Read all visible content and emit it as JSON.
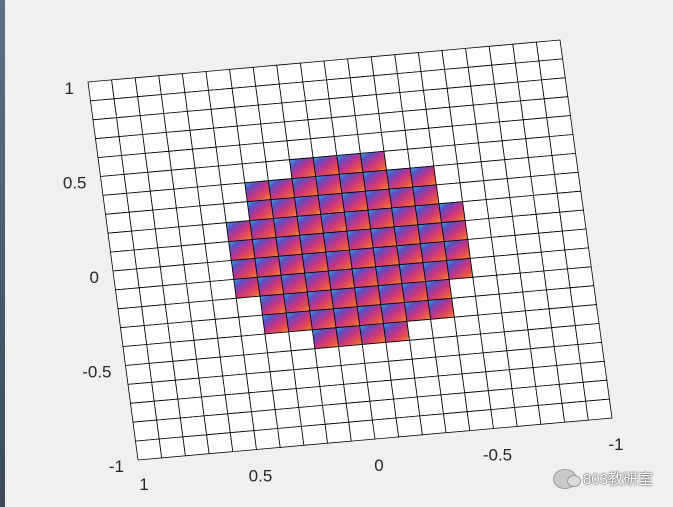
{
  "chart_data": {
    "type": "surface",
    "title": "",
    "view": "3d-top-tilted",
    "grid": {
      "x_range": [
        -1,
        1
      ],
      "y_range": [
        -1,
        1
      ],
      "cells": 20
    },
    "x_ticks": [
      {
        "value": 0.5,
        "label": "0.5"
      },
      {
        "value": 0,
        "label": "0"
      },
      {
        "value": -0.5,
        "label": "-0.5"
      },
      {
        "value": -1,
        "label": "-1"
      }
    ],
    "y_ticks": [
      {
        "value": 1,
        "label": "1"
      },
      {
        "value": 0.5,
        "label": "0.5"
      },
      {
        "value": 0,
        "label": "0"
      },
      {
        "value": -0.5,
        "label": "-0.5"
      },
      {
        "value": -1,
        "label": "-1"
      }
    ],
    "corner_label": "1",
    "colored_region": {
      "shape": "disc",
      "radius": 0.5
    },
    "colormap": [
      "#2ec4e6",
      "#5a4fc4",
      "#c0348a",
      "#e8504a",
      "#f0a030"
    ],
    "colors": {
      "background": "#f0f0f0",
      "face": "#ffffff",
      "edge": "#000000"
    }
  },
  "watermark": {
    "text": "803教研室"
  }
}
